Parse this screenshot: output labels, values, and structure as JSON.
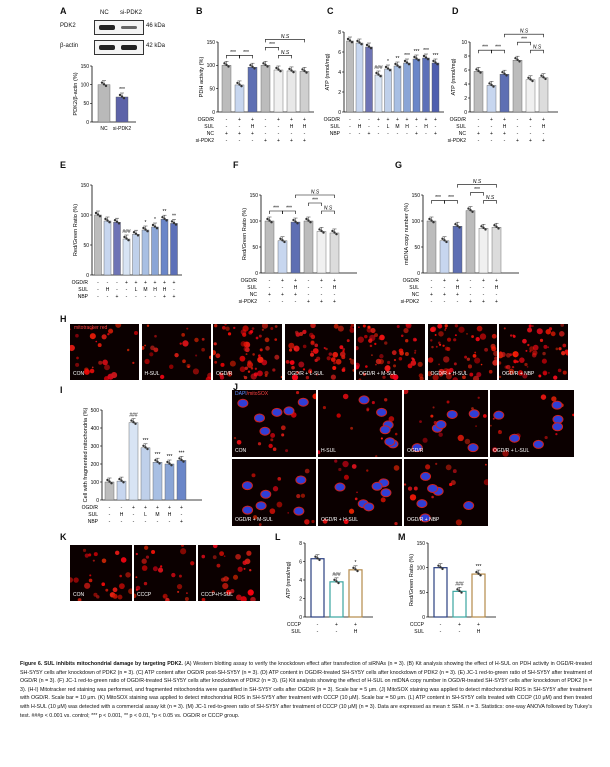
{
  "panel_letters": [
    "A",
    "B",
    "C",
    "D",
    "E",
    "F",
    "G",
    "H",
    "I",
    "J",
    "K",
    "L",
    "M"
  ],
  "panelA": {
    "lanes": [
      "NC",
      "si-PDK2"
    ],
    "rows": [
      {
        "name": "PDK2",
        "kda": "46 kDa"
      },
      {
        "name": "β-actin",
        "kda": "42 kDa"
      }
    ],
    "chart_data": {
      "type": "bar",
      "categories": [
        "NC",
        "si-PDK2"
      ],
      "values": [
        100,
        67
      ],
      "ylabel": "PDK2/β-actin (%)",
      "ylim": [
        0,
        150
      ],
      "yticks": [
        0,
        50,
        100,
        150
      ],
      "sig": [
        "",
        "***"
      ],
      "colors": [
        "#b9b9b9",
        "#5d63a8"
      ]
    }
  },
  "panelB": {
    "chart_data": {
      "type": "bar",
      "ylabel": "PDH activity (%)",
      "ylim": [
        0,
        150
      ],
      "yticks": [
        0,
        50,
        100,
        150
      ],
      "values": [
        100,
        58,
        96,
        100,
        90,
        88,
        87
      ],
      "colors": [
        "#bcbcbc",
        "#c7d6ef",
        "#5e6fb3",
        "#bcbcbc",
        "#f0f0f0",
        "#e8e8e8",
        "#cfcfcf"
      ],
      "brackets": [
        {
          "from": 0,
          "to": 1,
          "label": "***",
          "level": 0
        },
        {
          "from": 1,
          "to": 2,
          "label": "***",
          "level": 0
        },
        {
          "from": 3,
          "to": 4,
          "label": "***",
          "level": 1
        },
        {
          "from": 4,
          "to": 5,
          "label": "N.S",
          "level": 0
        },
        {
          "from": 3,
          "to": 6,
          "label": "N.S",
          "level": 2
        }
      ]
    },
    "conditions": [
      {
        "name": "OGD/R",
        "vals": [
          "-",
          "+",
          "+",
          "-",
          "+",
          "+",
          "+"
        ]
      },
      {
        "name": "SUL",
        "vals": [
          "-",
          "-",
          "H",
          "-",
          "-",
          "H",
          "H"
        ]
      },
      {
        "name": "NC",
        "vals": [
          "+",
          "+",
          "+",
          "-",
          "-",
          "-",
          "-"
        ]
      },
      {
        "name": "si-PDK2",
        "vals": [
          "-",
          "-",
          "-",
          "+",
          "+",
          "+",
          "+"
        ]
      }
    ]
  },
  "panelC": {
    "chart_data": {
      "type": "bar",
      "ylabel": "ATP (nmol/mg)",
      "ylim": [
        0,
        8
      ],
      "yticks": [
        0,
        2,
        4,
        6,
        8
      ],
      "values": [
        7.1,
        6.9,
        6.5,
        3.7,
        4.3,
        4.6,
        4.9,
        5.3,
        5.4,
        4.9
      ],
      "colors": [
        "#bcbcbc",
        "#c7d6ef",
        "#6e74b5",
        "#d8e4f4",
        "#bfd0ea",
        "#a8bfe3",
        "#8aa5d6",
        "#6a86c8",
        "#5c70b8",
        "#4f5fae"
      ],
      "sig": [
        "",
        "",
        "",
        "###",
        "*",
        "**",
        "***",
        "***",
        "***",
        "***"
      ]
    },
    "conditions": [
      {
        "name": "OGD/R",
        "vals": [
          "-",
          "-",
          "-",
          "+",
          "+",
          "+",
          "+",
          "+",
          "+",
          "+"
        ]
      },
      {
        "name": "SUL",
        "vals": [
          "-",
          "H",
          "-",
          "-",
          "L",
          "M",
          "H",
          "-",
          "H",
          "-"
        ]
      },
      {
        "name": "NBP",
        "vals": [
          "-",
          "-",
          "+",
          "-",
          "-",
          "-",
          "-",
          "+",
          "-",
          "+"
        ]
      }
    ]
  },
  "panelD": {
    "chart_data": {
      "type": "bar",
      "ylabel": "ATP (nmol/mg)",
      "ylim": [
        0,
        10
      ],
      "yticks": [
        0,
        2,
        4,
        6,
        8,
        10
      ],
      "values": [
        5.8,
        3.8,
        5.4,
        7.4,
        4.6,
        4.9
      ],
      "colors": [
        "#bcbcbc",
        "#c7d6ef",
        "#5e6fb3",
        "#bcbcbc",
        "#f0f0f0",
        "#dcdcdc"
      ],
      "brackets": [
        {
          "from": 0,
          "to": 1,
          "label": "***",
          "level": 0
        },
        {
          "from": 1,
          "to": 2,
          "label": "***",
          "level": 0
        },
        {
          "from": 3,
          "to": 4,
          "label": "***",
          "level": 1
        },
        {
          "from": 4,
          "to": 5,
          "label": "N.S",
          "level": 0
        },
        {
          "from": 2,
          "to": 5,
          "label": "N.S",
          "level": 2
        }
      ]
    },
    "conditions": [
      {
        "name": "OGD/R",
        "vals": [
          "-",
          "+",
          "+",
          "-",
          "+",
          "+"
        ]
      },
      {
        "name": "SUL",
        "vals": [
          "-",
          "-",
          "H",
          "-",
          "-",
          "H"
        ]
      },
      {
        "name": "NC",
        "vals": [
          "+",
          "+",
          "+",
          "-",
          "-",
          "-"
        ]
      },
      {
        "name": "si-PDK2",
        "vals": [
          "-",
          "-",
          "-",
          "+",
          "+",
          "+"
        ]
      }
    ]
  },
  "panelE": {
    "chart_data": {
      "type": "bar",
      "ylabel": "Red/Green Ratio (%)",
      "ylim": [
        0,
        150
      ],
      "yticks": [
        0,
        50,
        100,
        150
      ],
      "values": [
        100,
        90,
        88,
        60,
        68,
        75,
        80,
        93,
        86
      ],
      "colors": [
        "#bcbcbc",
        "#c7d6ef",
        "#6e74b5",
        "#d8e4f4",
        "#bfd0ea",
        "#a8bfe3",
        "#8aa5d6",
        "#6a86c8",
        "#5c70b8"
      ],
      "sig": [
        "",
        "",
        "",
        "###",
        "",
        "*",
        "*",
        "**",
        "**"
      ]
    },
    "conditions": [
      {
        "name": "OGD/R",
        "vals": [
          "-",
          "-",
          "-",
          "+",
          "+",
          "+",
          "+",
          "+",
          "+"
        ]
      },
      {
        "name": "SUL",
        "vals": [
          "-",
          "H",
          "-",
          "-",
          "L",
          "M",
          "H",
          "H",
          "-"
        ]
      },
      {
        "name": "NBP",
        "vals": [
          "-",
          "-",
          "+",
          "-",
          "-",
          "-",
          "-",
          "+",
          "+"
        ]
      }
    ]
  },
  "panelF": {
    "chart_data": {
      "type": "bar",
      "ylabel": "Red/Green Ratio (%)",
      "ylim": [
        0,
        150
      ],
      "yticks": [
        0,
        50,
        100,
        150
      ],
      "values": [
        100,
        62,
        98,
        100,
        80,
        77
      ],
      "colors": [
        "#bcbcbc",
        "#c7d6ef",
        "#5e6fb3",
        "#bcbcbc",
        "#f0f0f0",
        "#dcdcdc"
      ],
      "brackets": [
        {
          "from": 0,
          "to": 1,
          "label": "***",
          "level": 0
        },
        {
          "from": 1,
          "to": 2,
          "label": "***",
          "level": 0
        },
        {
          "from": 3,
          "to": 4,
          "label": "***",
          "level": 1
        },
        {
          "from": 4,
          "to": 5,
          "label": "N.S",
          "level": 0
        },
        {
          "from": 2,
          "to": 5,
          "label": "N.S",
          "level": 2
        }
      ]
    },
    "conditions": [
      {
        "name": "OGD/R",
        "vals": [
          "-",
          "+",
          "+",
          "-",
          "+",
          "+"
        ]
      },
      {
        "name": "SUL",
        "vals": [
          "-",
          "-",
          "H",
          "-",
          "-",
          "H"
        ]
      },
      {
        "name": "NC",
        "vals": [
          "+",
          "+",
          "+",
          "-",
          "-",
          "-"
        ]
      },
      {
        "name": "si-PDK2",
        "vals": [
          "-",
          "-",
          "-",
          "+",
          "+",
          "+"
        ]
      }
    ]
  },
  "panelG": {
    "chart_data": {
      "type": "bar",
      "ylabel": "mtDNA copy number (%)",
      "ylim": [
        0,
        150
      ],
      "yticks": [
        0,
        50,
        100,
        150
      ],
      "values": [
        100,
        62,
        90,
        120,
        86,
        88
      ],
      "colors": [
        "#bcbcbc",
        "#c7d6ef",
        "#5e6fb3",
        "#bcbcbc",
        "#f0f0f0",
        "#dcdcdc"
      ],
      "brackets": [
        {
          "from": 0,
          "to": 1,
          "label": "***",
          "level": 0
        },
        {
          "from": 1,
          "to": 2,
          "label": "***",
          "level": 0
        },
        {
          "from": 3,
          "to": 4,
          "label": "***",
          "level": 1
        },
        {
          "from": 4,
          "to": 5,
          "label": "N.S",
          "level": 0
        },
        {
          "from": 2,
          "to": 5,
          "label": "N.S",
          "level": 2
        }
      ]
    },
    "conditions": [
      {
        "name": "OGD/R",
        "vals": [
          "-",
          "+",
          "+",
          "-",
          "+",
          "+"
        ]
      },
      {
        "name": "SUL",
        "vals": [
          "-",
          "-",
          "H",
          "-",
          "-",
          "H"
        ]
      },
      {
        "name": "NC",
        "vals": [
          "+",
          "+",
          "+",
          "-",
          "-",
          "-"
        ]
      },
      {
        "name": "si-PDK2",
        "vals": [
          "-",
          "-",
          "-",
          "+",
          "+",
          "+"
        ]
      }
    ]
  },
  "panelH": {
    "stain": "mitotracker red",
    "tiles": [
      "CON",
      "H-SUL",
      "OGD/R",
      "OGD/R + L-SUL",
      "OGD/R + M-SUL",
      "OGD/R + H-SUL",
      "OGD/R + NBP"
    ]
  },
  "panelI": {
    "chart_data": {
      "type": "bar",
      "ylabel": "Cell with fragmented mitochondria (%)",
      "ylim": [
        0,
        500
      ],
      "yticks": [
        0,
        100,
        200,
        300,
        400,
        500
      ],
      "values": [
        100,
        105,
        430,
        290,
        210,
        200,
        220
      ],
      "colors": [
        "#bcbcbc",
        "#c7d6ef",
        "#d8e4f4",
        "#bfd0ea",
        "#a8bfe3",
        "#8aa5d6",
        "#6a86c8"
      ],
      "sig": [
        "",
        "",
        "###",
        "***",
        "***",
        "***",
        "***"
      ]
    },
    "conditions": [
      {
        "name": "OGD/R",
        "vals": [
          "-",
          "-",
          "+",
          "+",
          "+",
          "+",
          "+"
        ]
      },
      {
        "name": "SUL",
        "vals": [
          "-",
          "H",
          "-",
          "L",
          "M",
          "H",
          "-"
        ]
      },
      {
        "name": "NBP",
        "vals": [
          "-",
          "-",
          "-",
          "-",
          "-",
          "-",
          "+"
        ]
      }
    ]
  },
  "panelJ": {
    "stain_a": "DAPI",
    "stain_b": "mitoSOX",
    "tiles": [
      "CON",
      "H-SUL",
      "OGD/R",
      "OGD/R + L-SUL",
      "OGD/R + M-SUL",
      "OGD/R + H-SUL",
      "OGD/R + NBP"
    ]
  },
  "panelK": {
    "tiles": [
      "CON",
      "CCCP",
      "CCCP+H-SUL"
    ]
  },
  "panelL": {
    "chart_data": {
      "type": "bar",
      "ylabel": "ATP (nmol/mg)",
      "ylim": [
        0,
        8
      ],
      "yticks": [
        0,
        2,
        4,
        6,
        8
      ],
      "values": [
        6.3,
        3.8,
        5.1
      ],
      "colors": [
        "#ffffff",
        "#ffffff",
        "#ffffff"
      ],
      "edges": [
        "#2a3f80",
        "#3aa5a0",
        "#b38a4a"
      ],
      "sig": [
        "",
        "###",
        "*"
      ]
    },
    "conditions": [
      {
        "name": "CCCP",
        "vals": [
          "-",
          "+",
          "+"
        ]
      },
      {
        "name": "SUL",
        "vals": [
          "-",
          "-",
          "H"
        ]
      }
    ]
  },
  "panelM": {
    "chart_data": {
      "type": "bar",
      "ylabel": "Red/Green Ratio (%)",
      "ylim": [
        0,
        150
      ],
      "yticks": [
        0,
        50,
        100,
        150
      ],
      "values": [
        100,
        52,
        87
      ],
      "colors": [
        "#ffffff",
        "#ffffff",
        "#ffffff"
      ],
      "edges": [
        "#2a3f80",
        "#3aa5a0",
        "#b38a4a"
      ],
      "sig": [
        "",
        "###",
        "***"
      ]
    },
    "conditions": [
      {
        "name": "CCCP",
        "vals": [
          "-",
          "+",
          "+"
        ]
      },
      {
        "name": "SUL",
        "vals": [
          "-",
          "-",
          "H"
        ]
      }
    ]
  },
  "caption": {
    "title": "Figure 6. SUL inhibits mitochondrial damage by targeting PDK2.",
    "body": "(A) Western blotting assay to verify the knockdown effect after transfection of siRNAs (n = 3). (B) Kit analysis showing the effect of H-SUL on PDH activity in OGD/R-treated SH-SY5Y cells after knockdown of PDK2 (n = 3). (C) ATP content after OGD/R post-SH-SY5Y (n = 3). (D) ATP content in OGD/R-treated SH-SY5Y cells after knockdown of PDK2 (n = 3). (E) JC-1 red-to-green ratio of SH-SY5Y after treatment of OGD/R (n = 3). (F) JC-1 red-to-green ratio of OGD/R-treated SH-SY5Y cells after knockdown of PDK2 (n = 3). (G) Kit analysis showing the effect of H-SUL on mtDNA copy number in OGD/R-treated SH-SY5Y cells after knockdown of PDK2 (n = 3). (H-I) Mitotracker red staining was performed, and fragmented mitochondria were quantified in SH-SY5Y cells after OGD/R (n = 3). Scale bar = 5 μm. (J) MitoSOX staining was applied to detect mitochondrial ROS in SH-SY5Y after treatment with OGD/R. Scale bar = 10 μm. (K) MitoSOX staining was applied to detect mitochondrial ROS in SH-SY5Y after treatment with CCCP (10 μM). Scale bar = 50 μm. (L) ATP content in SH-SY5Y cells treated with CCCP (10 μM) and then treated with H-SUL (10 μM) was detected with a commercial assay kit (n = 3). (M) JC-1 red-to-green ratio of SH-SY5Y after treatment of CCCP (10 μM) (n = 3). Data are expressed as mean ± SEM. n = 3. Statistics: one-way ANOVA followed by Tukey's test. ###p < 0.001 vs. control; *** p < 0.001, ** p < 0.01, *p < 0.05 vs. OGD/R or CCCP group."
  }
}
